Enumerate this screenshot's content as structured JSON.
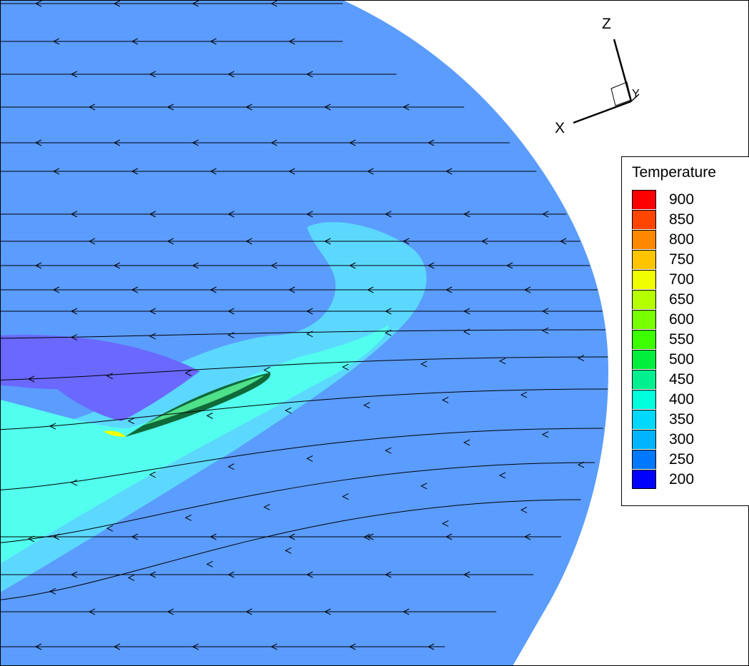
{
  "chart_data": {
    "type": "contour",
    "legend": {
      "title": "Temperature",
      "placement": "right",
      "levels": [
        {
          "value": "900",
          "color": "#ff0000"
        },
        {
          "value": "850",
          "color": "#ff4500"
        },
        {
          "value": "800",
          "color": "#ff8800"
        },
        {
          "value": "750",
          "color": "#ffc400"
        },
        {
          "value": "700",
          "color": "#f0ff00"
        },
        {
          "value": "650",
          "color": "#b4ff00"
        },
        {
          "value": "600",
          "color": "#78ff00"
        },
        {
          "value": "550",
          "color": "#3cff00"
        },
        {
          "value": "500",
          "color": "#00ee3c"
        },
        {
          "value": "450",
          "color": "#00f090"
        },
        {
          "value": "400",
          "color": "#00ffdc"
        },
        {
          "value": "350",
          "color": "#00d8ff"
        },
        {
          "value": "300",
          "color": "#00b4ff"
        },
        {
          "value": "250",
          "color": "#0078ff"
        },
        {
          "value": "200",
          "color": "#0000ff"
        }
      ]
    },
    "axes_triad": {
      "labels": [
        "Z",
        "Y",
        "X"
      ]
    },
    "field_colors": {
      "ambient": "#5b9cff",
      "cool_region": "#6a68ff",
      "plume_outer": "#5cd8ff",
      "plume_inner": "#52ffee",
      "body": "#0f6a3a"
    },
    "streamlines": "flow right to left"
  }
}
